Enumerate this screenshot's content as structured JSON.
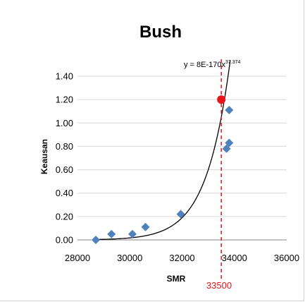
{
  "chart_data": {
    "type": "scatter",
    "title": "Bush",
    "xlabel": "SMR",
    "ylabel": "Keausan",
    "xlim": [
      28000,
      36000
    ],
    "ylim": [
      0,
      1.4
    ],
    "x_ticks": [
      "28000",
      "30000",
      "32000",
      "34000",
      "36000"
    ],
    "y_ticks": [
      "0.00",
      "0.20",
      "0.40",
      "0.60",
      "0.80",
      "1.00",
      "1.20",
      "1.40"
    ],
    "series": [
      {
        "marker": "diamond",
        "color": "#4f81bd",
        "points": [
          {
            "x": 28700,
            "y": 0.0
          },
          {
            "x": 29300,
            "y": 0.05
          },
          {
            "x": 30100,
            "y": 0.05
          },
          {
            "x": 30600,
            "y": 0.11
          },
          {
            "x": 31950,
            "y": 0.22
          },
          {
            "x": 33700,
            "y": 0.78
          },
          {
            "x": 33800,
            "y": 0.83
          },
          {
            "x": 33800,
            "y": 1.11
          }
        ]
      }
    ],
    "trendline": {
      "type": "power",
      "color": "#000000",
      "equation_main": "y = 8E-170x",
      "equation_exponent": "37.374",
      "coefficient": 8e-170,
      "exponent": 37.374
    },
    "reference": {
      "x": 33500,
      "y": 1.2,
      "label": "33500",
      "color": "#e8141b",
      "style": "dashed"
    },
    "grid": "horizontal",
    "legend": "none"
  }
}
